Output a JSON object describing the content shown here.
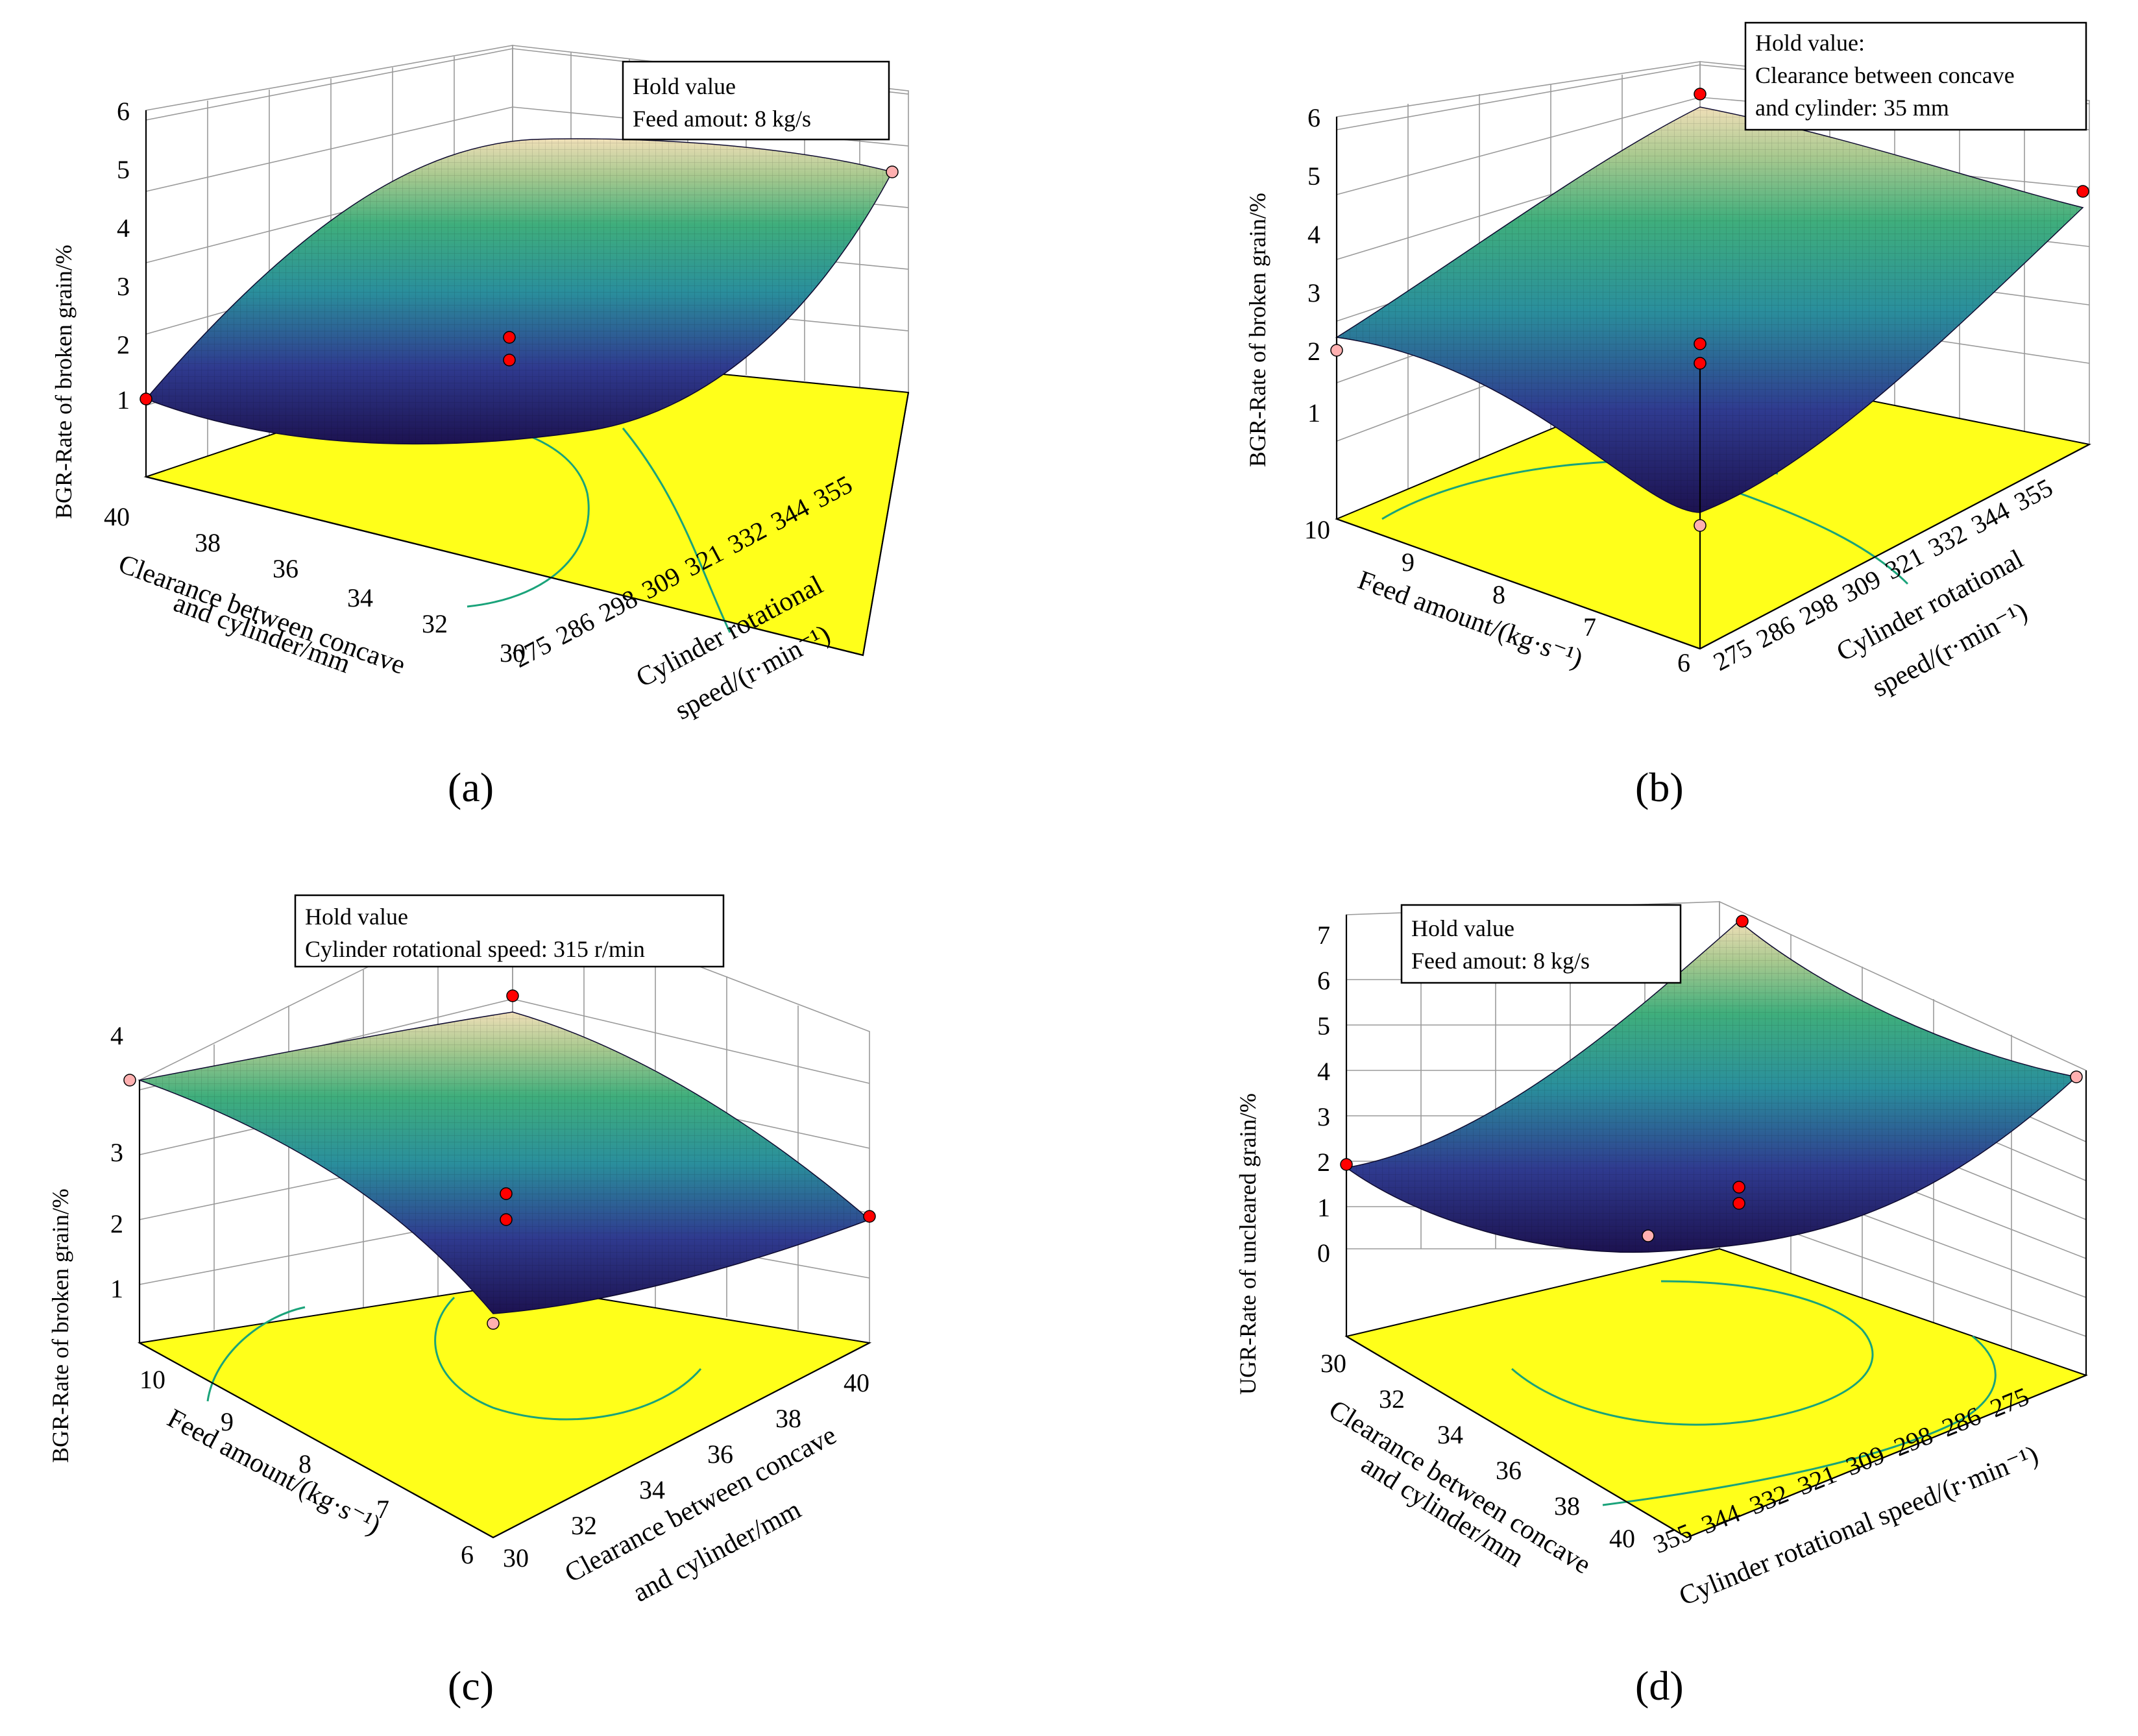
{
  "colors": {
    "floor": "#ffff1a",
    "contour": "#1aa37a",
    "surface_low": "#2b1b6e",
    "surface_mid": "#2a9a9a",
    "surface_high": "#f1e6b3",
    "design_point": "#ff0000",
    "design_point_below": "#ffb0b0"
  },
  "chart_data": [
    {
      "id": "a",
      "type": "surface3d",
      "caption": "(a)",
      "hold_box": {
        "line1": "Hold value",
        "line2": "Feed amout: 8 kg/s",
        "line3": ""
      },
      "zlabel": "BGR-Rate of broken grain/%",
      "z_ticks": [
        "1",
        "2",
        "3",
        "4",
        "5",
        "6"
      ],
      "zlim": [
        0,
        6
      ],
      "x_axis": {
        "label_line1": "Cylinder rotational",
        "label_line2": "speed/(r·min⁻¹)",
        "ticks": [
          "275",
          "286",
          "298",
          "309",
          "321",
          "332",
          "344",
          "355"
        ]
      },
      "y_axis": {
        "label_line1": "Clearance between concave",
        "label_line2": "and cylinder/mm",
        "ticks": [
          "40",
          "38",
          "36",
          "34",
          "32",
          "30"
        ]
      },
      "corner_values": {
        "near_left": 1.1,
        "far_left": 2.6,
        "near_right": 4.8,
        "far_right": 4.9,
        "center": 0.6
      },
      "design_points": [
        2.3,
        1.9
      ]
    },
    {
      "id": "b",
      "type": "surface3d",
      "caption": "(b)",
      "hold_box": {
        "line1": "Hold value:",
        "line2": "Clearance between concave",
        "line3": "and cylinder: 35 mm"
      },
      "zlabel": "BGR-Rate of broken grain/%",
      "z_ticks": [
        "1",
        "2",
        "3",
        "4",
        "5",
        "6"
      ],
      "zlim": [
        0,
        6
      ],
      "x_axis": {
        "label_line1": "Cylinder rotational",
        "label_line2": "speed/(r·min⁻¹)",
        "ticks": [
          "275",
          "286",
          "298",
          "309",
          "321",
          "332",
          "344",
          "355"
        ]
      },
      "y_axis": {
        "label_line1": "Feed amount/(kg·s⁻¹)",
        "label_line2": "",
        "ticks": [
          "10",
          "9",
          "8",
          "7",
          "6"
        ]
      },
      "corner_values": {
        "near_left": 2.1,
        "far_left": 5.9,
        "near_right": 0.4,
        "far_right": 4.6,
        "center": 1.2
      },
      "design_points": [
        2.2,
        1.8
      ]
    },
    {
      "id": "c",
      "type": "surface3d",
      "caption": "(c)",
      "hold_box": {
        "line1": "Hold value",
        "line2": "Cylinder rotational speed: 315 r/min",
        "line3": ""
      },
      "zlabel": "BGR-Rate of broken grain/%",
      "z_ticks": [
        "1",
        "2",
        "3",
        "4"
      ],
      "zlim": [
        0.3,
        4
      ],
      "x_axis": {
        "label_line1": "Clearance between concave",
        "label_line2": "and cylinder/mm",
        "ticks": [
          "30",
          "32",
          "34",
          "36",
          "38",
          "40"
        ]
      },
      "y_axis": {
        "label_line1": "Feed amount/(kg·s⁻¹)",
        "label_line2": "",
        "ticks": [
          "10",
          "9",
          "8",
          "7",
          "6"
        ]
      },
      "corner_values": {
        "near_left": 3.7,
        "far_left": 3.3,
        "near_right": 2.1,
        "far_right": 2.0,
        "center": 1.9
      },
      "design_points": [
        2.6,
        2.3
      ]
    },
    {
      "id": "d",
      "type": "surface3d",
      "caption": "(d)",
      "hold_box": {
        "line1": "Hold value",
        "line2": "Feed amout: 8 kg/s",
        "line3": ""
      },
      "zlabel": "UGR-Rate of uncleared grain/%",
      "z_ticks": [
        "0",
        "1",
        "2",
        "3",
        "4",
        "5",
        "6",
        "7"
      ],
      "zlim": [
        -1,
        7
      ],
      "x_axis": {
        "label_line1": "Cylinder rotational speed/(r·min⁻¹)",
        "label_line2": "",
        "ticks": [
          "355",
          "344",
          "332",
          "321",
          "309",
          "298",
          "286",
          "275"
        ]
      },
      "y_axis": {
        "label_line1": "Clearance between concave",
        "label_line2": "and cylinder/mm",
        "ticks": [
          "30",
          "32",
          "34",
          "36",
          "38",
          "40"
        ]
      },
      "corner_values": {
        "near_left": 2.0,
        "far_left": 7.2,
        "near_right": 4.2,
        "far_right": 3.5,
        "center": 0.1
      },
      "design_points": [
        1.5,
        1.2
      ]
    }
  ]
}
